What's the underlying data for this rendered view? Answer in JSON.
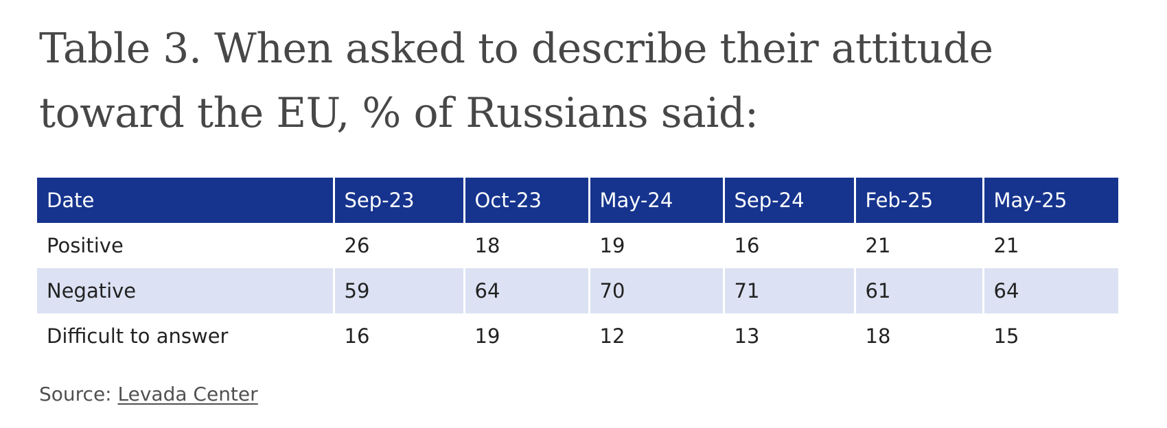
{
  "title": "Table 3. When asked to describe their attitude toward the EU, % of Russians said:",
  "table": {
    "headers": [
      "Date",
      "Sep-23",
      "Oct-23",
      "May-24",
      "Sep-24",
      "Feb-25",
      "May-25"
    ],
    "rows": [
      [
        "Positive",
        "26",
        "18",
        "19",
        "16",
        "21",
        "21"
      ],
      [
        "Negative",
        "59",
        "64",
        "70",
        "71",
        "61",
        "64"
      ],
      [
        "Difficult to answer",
        "16",
        "19",
        "12",
        "13",
        "18",
        "15"
      ]
    ]
  },
  "source": {
    "label": "Source: ",
    "link_text": "Levada Center"
  },
  "colors": {
    "header_bg": "#16348e",
    "stripe_bg": "#dce2f3",
    "title_text": "#474747"
  }
}
